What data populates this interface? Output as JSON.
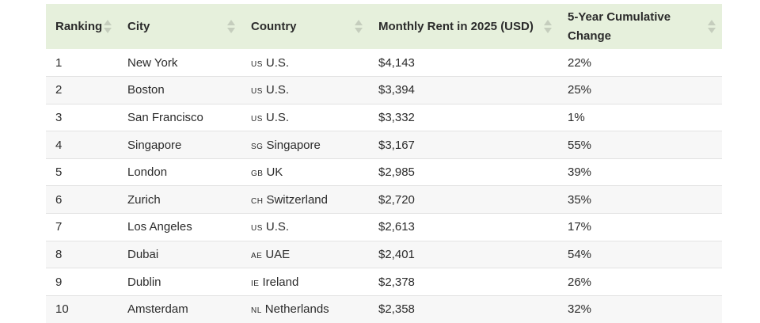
{
  "table": {
    "headers": [
      {
        "label": "Ranking"
      },
      {
        "label": "City"
      },
      {
        "label": "Country"
      },
      {
        "label": "Monthly Rent in 2025 (USD)"
      },
      {
        "label": "5-Year Cumulative Change"
      }
    ],
    "rows": [
      {
        "rank": "1",
        "city": "New York",
        "flag": "US",
        "country": "U.S.",
        "rent": "$4,143",
        "change": "22%"
      },
      {
        "rank": "2",
        "city": "Boston",
        "flag": "US",
        "country": "U.S.",
        "rent": "$3,394",
        "change": "25%"
      },
      {
        "rank": "3",
        "city": "San Francisco",
        "flag": "US",
        "country": "U.S.",
        "rent": "$3,332",
        "change": "1%"
      },
      {
        "rank": "4",
        "city": "Singapore",
        "flag": "SG",
        "country": "Singapore",
        "rent": "$3,167",
        "change": "55%"
      },
      {
        "rank": "5",
        "city": "London",
        "flag": "GB",
        "country": "UK",
        "rent": "$2,985",
        "change": "39%"
      },
      {
        "rank": "6",
        "city": "Zurich",
        "flag": "CH",
        "country": "Switzerland",
        "rent": "$2,720",
        "change": "35%"
      },
      {
        "rank": "7",
        "city": "Los Angeles",
        "flag": "US",
        "country": "U.S.",
        "rent": "$2,613",
        "change": "17%"
      },
      {
        "rank": "8",
        "city": "Dubai",
        "flag": "AE",
        "country": "UAE",
        "rent": "$2,401",
        "change": "54%"
      },
      {
        "rank": "9",
        "city": "Dublin",
        "flag": "IE",
        "country": "Ireland",
        "rent": "$2,378",
        "change": "26%"
      },
      {
        "rank": "10",
        "city": "Amsterdam",
        "flag": "NL",
        "country": "Netherlands",
        "rent": "$2,358",
        "change": "32%"
      }
    ]
  },
  "colors": {
    "header_bg": "#e6f0dc",
    "stripe_bg": "#f7f7f7",
    "sort_icon": "#c5cdbd"
  }
}
